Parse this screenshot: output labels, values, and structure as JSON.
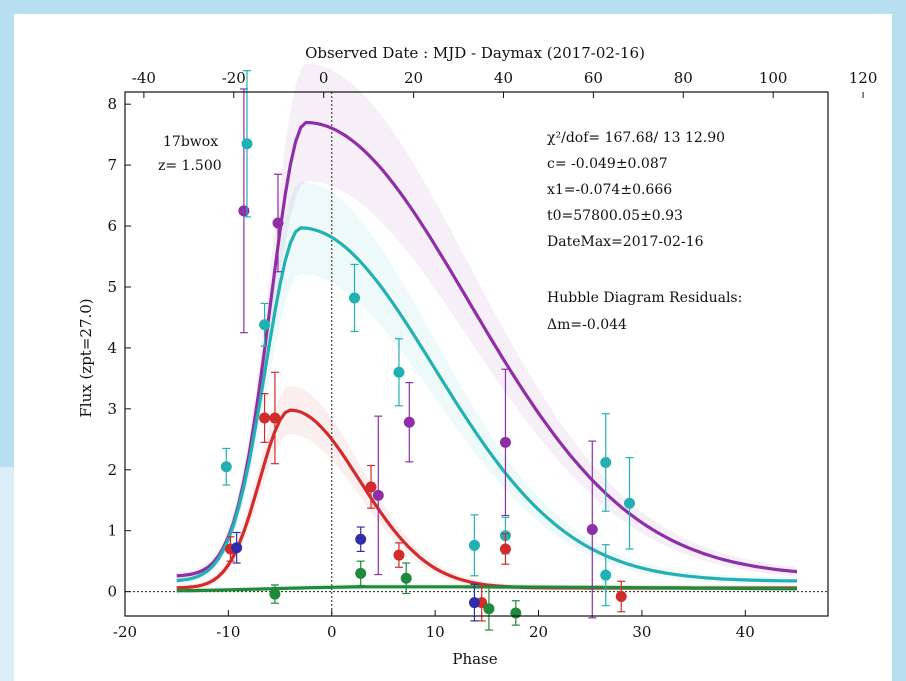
{
  "chart_data": {
    "type": "scatter",
    "top_title": "Observed Date : MJD - Daymax (2017-02-16)",
    "xlabel": "Phase",
    "ylabel": "Flux (zpt=27.0)",
    "xlim": [
      -20,
      48
    ],
    "ylim": [
      -0.4,
      8.2
    ],
    "top_axis_offset": -1.8,
    "x_ticks": [
      -20,
      -10,
      0,
      10,
      20,
      30,
      40
    ],
    "y_ticks": [
      0,
      1,
      2,
      3,
      4,
      5,
      6,
      7,
      8
    ],
    "top_ticks": [
      -40,
      -20,
      0,
      20,
      40,
      60,
      80,
      100,
      120
    ],
    "vertical_reference_line": 0,
    "horizontal_reference_line": 0,
    "name_text": "17bwox",
    "redshift_text": "z=  1.500",
    "fit_lines": [
      "χ²/dof= 167.68/ 13  12.90",
      "c= -0.049±0.087",
      "x1=-0.074±0.666",
      "t0=57800.05±0.93",
      "DateMax=2017-02-16"
    ],
    "hubble_title": "Hubble Diagram Residuals:",
    "hubble_value": "Δm=-0.044",
    "series": [
      {
        "color": "#8e2fa6",
        "model": {
          "amp": 7.45,
          "peak": -2.5,
          "rise": 4.8,
          "fall": 16.5,
          "base": 0.25
        },
        "points": [
          {
            "x": -8.5,
            "y": 6.25,
            "err": 2.0
          },
          {
            "x": -5.2,
            "y": 6.05,
            "err": 0.8
          },
          {
            "x": 4.5,
            "y": 1.58,
            "err": 1.3
          },
          {
            "x": 7.5,
            "y": 2.78,
            "err": 0.65
          },
          {
            "x": 16.8,
            "y": 2.45,
            "err": 1.2
          },
          {
            "x": 25.2,
            "y": 1.02,
            "err": 1.45
          }
        ]
      },
      {
        "color": "#23b0b3",
        "model": {
          "amp": 5.8,
          "peak": -3.0,
          "rise": 4.8,
          "fall": 13.5,
          "base": 0.17
        },
        "points": [
          {
            "x": -10.2,
            "y": 2.05,
            "err": 0.3
          },
          {
            "x": -8.2,
            "y": 7.35,
            "err": 1.2
          },
          {
            "x": -6.5,
            "y": 4.38,
            "err": 0.35
          },
          {
            "x": 2.2,
            "y": 4.82,
            "err": 0.55
          },
          {
            "x": 6.5,
            "y": 3.6,
            "err": 0.55
          },
          {
            "x": 13.8,
            "y": 0.76,
            "err": 0.5
          },
          {
            "x": 16.8,
            "y": 0.92,
            "err": 0.3
          },
          {
            "x": 26.5,
            "y": 2.12,
            "err": 0.8
          },
          {
            "x": 26.5,
            "y": 0.27,
            "err": 0.5
          },
          {
            "x": 28.8,
            "y": 1.45,
            "err": 0.75
          }
        ]
      },
      {
        "color": "#d22b2b",
        "model": {
          "amp": 2.92,
          "peak": -4.0,
          "rise": 4.2,
          "fall": 7.0,
          "base": 0.06
        },
        "points": [
          {
            "x": -9.8,
            "y": 0.7,
            "err": 0.2
          },
          {
            "x": -6.5,
            "y": 2.85,
            "err": 0.4
          },
          {
            "x": -5.5,
            "y": 2.85,
            "err": 0.75
          },
          {
            "x": 3.8,
            "y": 1.72,
            "err": 0.35
          },
          {
            "x": 6.5,
            "y": 0.6,
            "err": 0.2
          },
          {
            "x": 14.5,
            "y": -0.18,
            "err": 0.3
          },
          {
            "x": 16.8,
            "y": 0.7,
            "err": 0.25
          },
          {
            "x": 28.0,
            "y": -0.08,
            "err": 0.25
          }
        ]
      },
      {
        "color": "#2d2fa8",
        "model": null,
        "points": [
          {
            "x": -9.2,
            "y": 0.72,
            "err": 0.25
          },
          {
            "x": 2.8,
            "y": 0.86,
            "err": 0.2
          },
          {
            "x": 13.8,
            "y": -0.18,
            "err": 0.3
          }
        ]
      },
      {
        "color": "#1f8a3a",
        "model": {
          "amp": 0.08,
          "peak": 5,
          "rise": 15,
          "fall": 40,
          "base": 0.0
        },
        "points": [
          {
            "x": -5.5,
            "y": -0.04,
            "err": 0.15
          },
          {
            "x": 2.8,
            "y": 0.3,
            "err": 0.2
          },
          {
            "x": 7.2,
            "y": 0.22,
            "err": 0.25
          },
          {
            "x": 15.2,
            "y": -0.28,
            "err": 0.35
          },
          {
            "x": 17.8,
            "y": -0.35,
            "err": 0.2
          }
        ]
      }
    ]
  }
}
